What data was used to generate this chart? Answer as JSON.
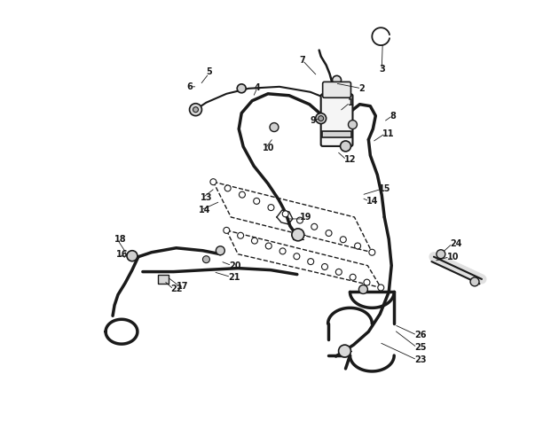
{
  "background_color": "#ffffff",
  "line_color": "#1a1a1a",
  "label_color": "#1a1a1a",
  "figsize": [
    6.12,
    4.75
  ],
  "dpi": 100,
  "label_fontsize": 7.0
}
